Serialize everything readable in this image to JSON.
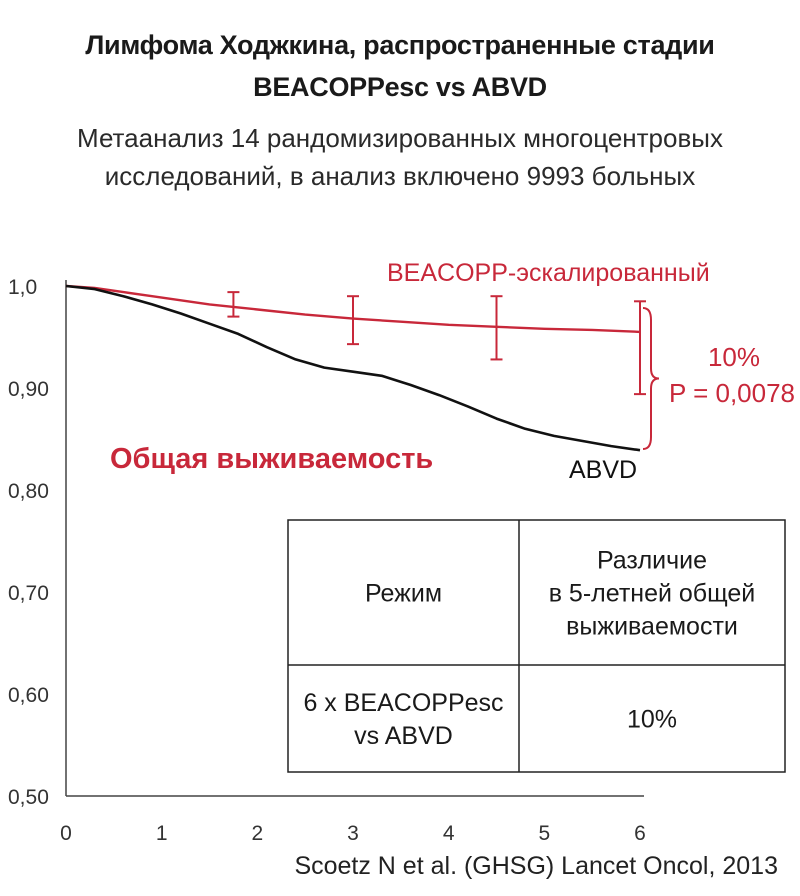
{
  "header": {
    "title_line1": "Лимфома Ходжкина, распространенные стадии",
    "title_line2": "BEACOPPesc vs ABVD",
    "subtitle_line1": "Метаанализ 14 рандомизированных многоцентровых",
    "subtitle_line2": "исследований, в анализ включено 9993 больных"
  },
  "chart_data": {
    "type": "line",
    "title": "Общая выживаемость",
    "xlabel": "",
    "ylabel": "",
    "xlim": [
      0,
      6
    ],
    "ylim": [
      0.5,
      1.0
    ],
    "x_ticks": [
      "0",
      "1",
      "2",
      "3",
      "4",
      "5",
      "6"
    ],
    "y_ticks": [
      {
        "value": 1.0,
        "label": "1,0"
      },
      {
        "value": 0.9,
        "label": "0,90"
      },
      {
        "value": 0.8,
        "label": "0,80"
      },
      {
        "value": 0.7,
        "label": "0,70"
      },
      {
        "value": 0.6,
        "label": "0,60"
      },
      {
        "value": 0.5,
        "label": "0,50"
      }
    ],
    "series": [
      {
        "name": "BEACOPP-эскалированный",
        "color": "#c8283a",
        "x": [
          0,
          0.3,
          0.6,
          0.9,
          1.2,
          1.5,
          1.8,
          2.1,
          2.5,
          3.0,
          3.5,
          4.0,
          4.5,
          5.0,
          5.5,
          6.0
        ],
        "y": [
          1.0,
          0.998,
          0.994,
          0.99,
          0.986,
          0.982,
          0.979,
          0.976,
          0.972,
          0.968,
          0.965,
          0.962,
          0.96,
          0.958,
          0.957,
          0.955
        ],
        "error_bars": [
          {
            "x": 1.75,
            "low": 0.97,
            "high": 0.994
          },
          {
            "x": 3.0,
            "low": 0.943,
            "high": 0.99
          },
          {
            "x": 4.5,
            "low": 0.928,
            "high": 0.99
          },
          {
            "x": 6.0,
            "low": 0.894,
            "high": 0.985
          }
        ]
      },
      {
        "name": "ABVD",
        "color": "#111111",
        "x": [
          0,
          0.3,
          0.6,
          0.9,
          1.2,
          1.5,
          1.8,
          2.1,
          2.4,
          2.7,
          3.0,
          3.3,
          3.6,
          3.9,
          4.2,
          4.5,
          4.8,
          5.1,
          5.4,
          5.7,
          6.0
        ],
        "y": [
          1.0,
          0.997,
          0.99,
          0.982,
          0.973,
          0.963,
          0.953,
          0.94,
          0.928,
          0.92,
          0.916,
          0.912,
          0.903,
          0.893,
          0.882,
          0.87,
          0.86,
          0.853,
          0.848,
          0.843,
          0.839
        ]
      }
    ],
    "annotations": {
      "diff_pct": "10%",
      "p_value": "P = 0,0078",
      "endpoint_label": "Общая выживаемость"
    },
    "inset_table": {
      "headers": [
        "Режим",
        "Различие\nв 5-летней общей\nвыживаемости"
      ],
      "rows": [
        [
          "6 x BEACOPPesc\nvs ABVD",
          "10%"
        ]
      ]
    }
  },
  "footer": {
    "reference": "Scoetz N et al. (GHSG) Lancet Oncol, 2013"
  }
}
